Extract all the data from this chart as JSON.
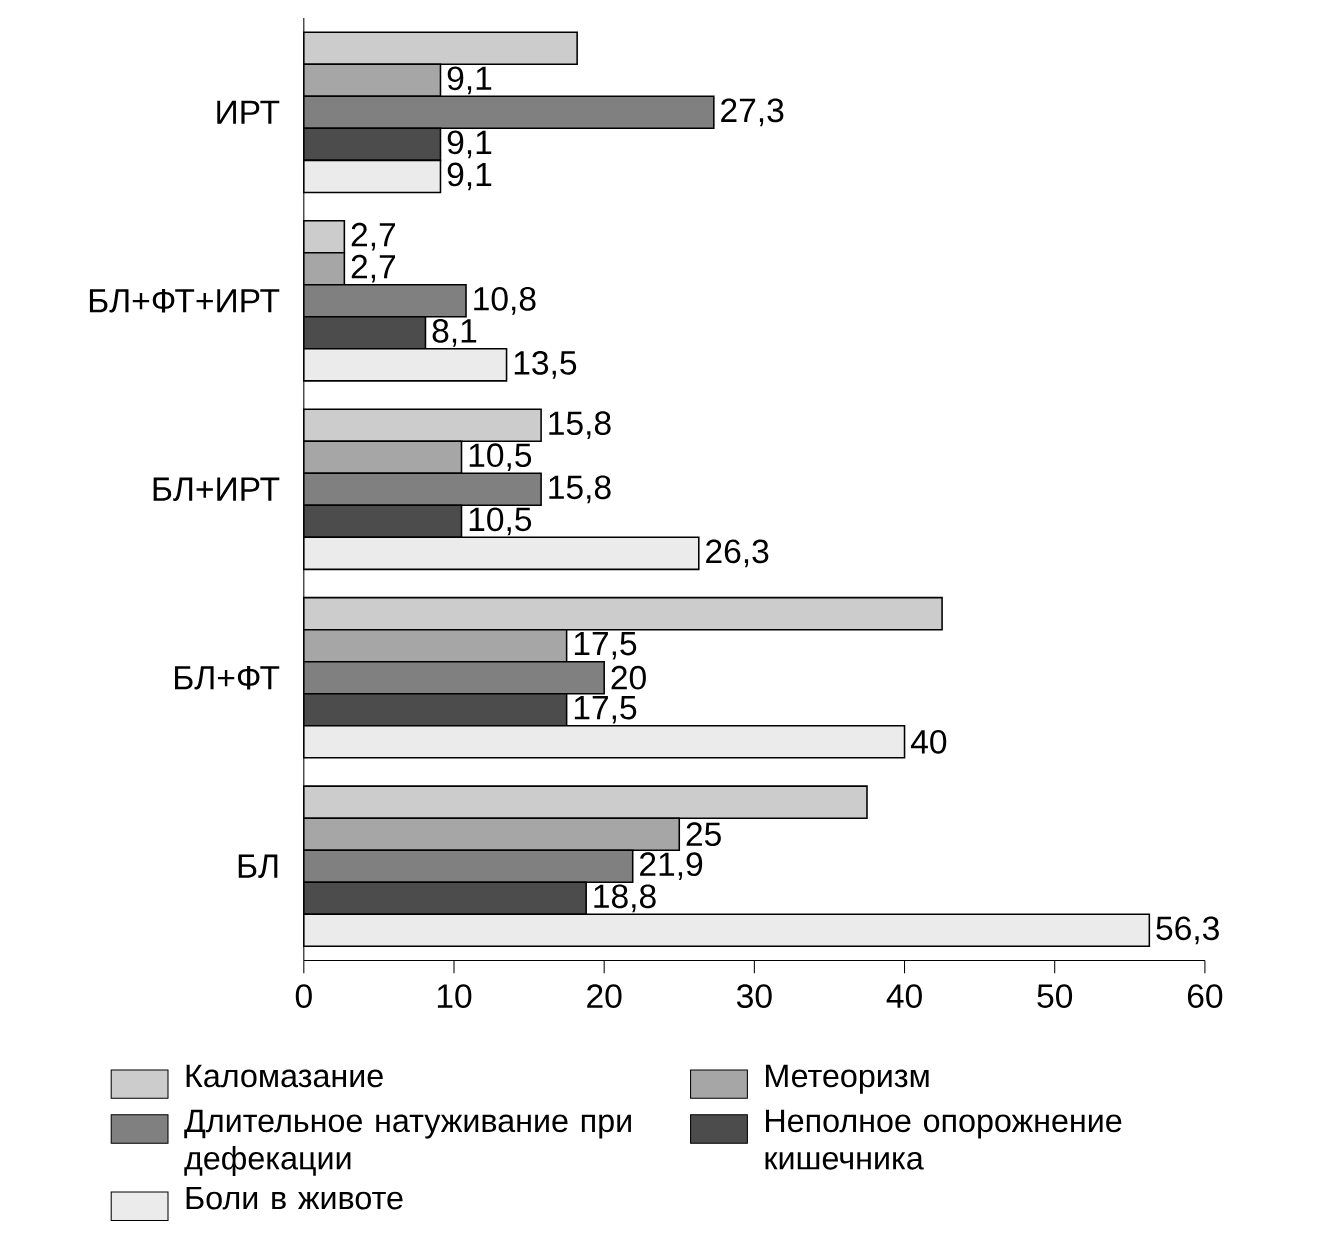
{
  "chart_data": {
    "type": "bar",
    "orientation": "horizontal",
    "categories": [
      "ИРТ",
      "БЛ+ФТ+ИРТ",
      "БЛ+ИРТ",
      "БЛ+ФТ",
      "БЛ"
    ],
    "series": [
      {
        "name": "Каломазание",
        "color": "#000000",
        "values": [
          18.2,
          2.7,
          15.8,
          42.5,
          37.5
        ],
        "value_labels": [
          null,
          "2,7",
          "15,8",
          null,
          null
        ]
      },
      {
        "name": "Метеоризм",
        "color": "#000000",
        "values": [
          9.1,
          2.7,
          10.5,
          17.5,
          25
        ],
        "value_labels": [
          "9,1",
          "2,7",
          "10,5",
          "17,5",
          "25"
        ]
      },
      {
        "name": "Длительное натуживание при дефекации",
        "color": "#000000",
        "values": [
          27.3,
          10.8,
          15.8,
          20,
          21.9
        ],
        "value_labels": [
          "27,3",
          "10,8",
          "15,8",
          "20",
          "21,9"
        ]
      },
      {
        "name": "Неполное опорожнение кишечника",
        "color": "#000000",
        "values": [
          9.1,
          8.1,
          10.5,
          17.5,
          18.8
        ],
        "value_labels": [
          "9,1",
          "8,1",
          "10,5",
          "17,5",
          "18,8"
        ]
      },
      {
        "name": "Боли в животе",
        "color": "#000000",
        "values": [
          9.1,
          13.5,
          26.3,
          40,
          56.3
        ],
        "value_labels": [
          "9,1",
          "13,5",
          "26,3",
          "40",
          "56,3"
        ]
      }
    ],
    "xlim": [
      0,
      60
    ],
    "xticks": [
      0,
      10,
      20,
      30,
      40,
      50,
      60
    ],
    "grid": false,
    "legend": "bottom"
  }
}
